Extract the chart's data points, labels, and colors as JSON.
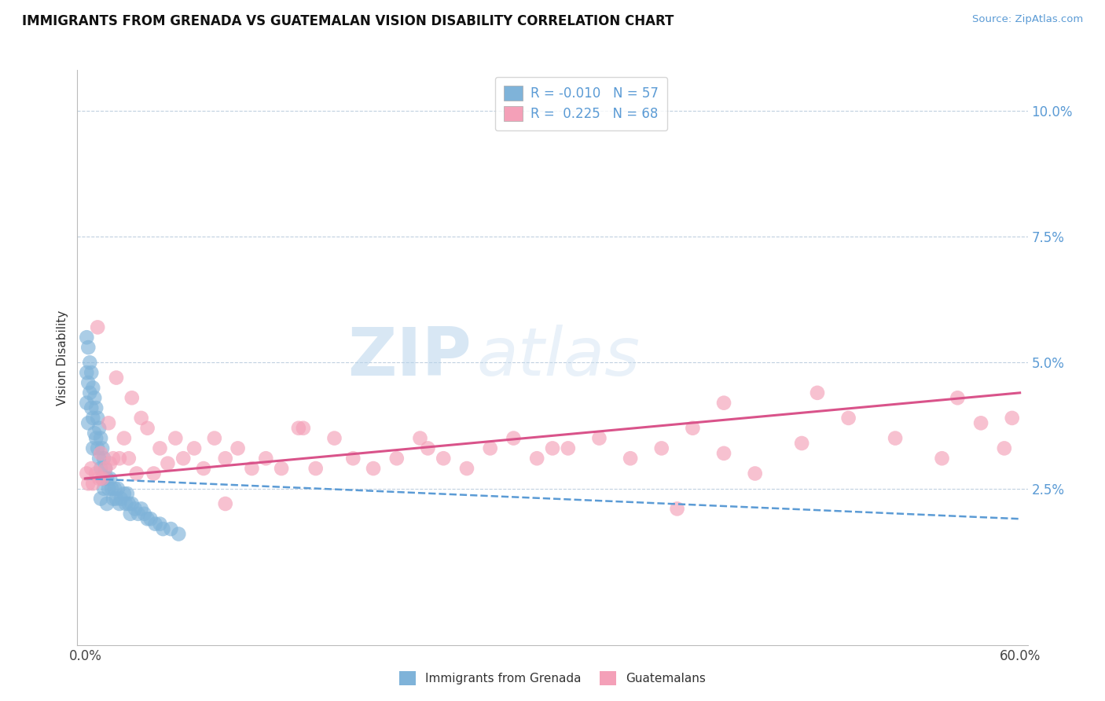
{
  "title": "IMMIGRANTS FROM GRENADA VS GUATEMALAN VISION DISABILITY CORRELATION CHART",
  "source": "Source: ZipAtlas.com",
  "ylabel": "Vision Disability",
  "watermark_zip": "ZIP",
  "watermark_atlas": "atlas",
  "xlim": [
    0.0,
    0.6
  ],
  "ylim": [
    -0.005,
    0.108
  ],
  "yticks": [
    0.0,
    0.025,
    0.05,
    0.075,
    0.1
  ],
  "ytick_labels": [
    "",
    "2.5%",
    "5.0%",
    "7.5%",
    "10.0%"
  ],
  "xticks": [
    0.0,
    0.1,
    0.2,
    0.3,
    0.4,
    0.5,
    0.6
  ],
  "xtick_labels": [
    "0.0%",
    "",
    "",
    "",
    "",
    "",
    "60.0%"
  ],
  "color_blue": "#7fb3d9",
  "color_pink": "#f4a0b8",
  "color_line_blue": "#5b9bd5",
  "color_line_pink": "#d9538a",
  "background_color": "#ffffff",
  "grid_color": "#c0d0e0",
  "blue_scatter_x": [
    0.001,
    0.001,
    0.001,
    0.002,
    0.002,
    0.002,
    0.003,
    0.003,
    0.004,
    0.004,
    0.005,
    0.005,
    0.005,
    0.006,
    0.006,
    0.007,
    0.007,
    0.008,
    0.008,
    0.009,
    0.009,
    0.01,
    0.01,
    0.01,
    0.011,
    0.011,
    0.012,
    0.012,
    0.013,
    0.014,
    0.014,
    0.015,
    0.016,
    0.017,
    0.018,
    0.019,
    0.02,
    0.021,
    0.022,
    0.023,
    0.025,
    0.026,
    0.027,
    0.028,
    0.029,
    0.03,
    0.032,
    0.034,
    0.036,
    0.038,
    0.04,
    0.042,
    0.045,
    0.048,
    0.05,
    0.055,
    0.06
  ],
  "blue_scatter_y": [
    0.055,
    0.048,
    0.042,
    0.053,
    0.046,
    0.038,
    0.05,
    0.044,
    0.048,
    0.041,
    0.045,
    0.039,
    0.033,
    0.043,
    0.036,
    0.041,
    0.035,
    0.039,
    0.033,
    0.037,
    0.031,
    0.035,
    0.029,
    0.023,
    0.033,
    0.027,
    0.031,
    0.025,
    0.029,
    0.027,
    0.022,
    0.025,
    0.027,
    0.025,
    0.023,
    0.025,
    0.023,
    0.025,
    0.022,
    0.023,
    0.024,
    0.022,
    0.024,
    0.022,
    0.02,
    0.022,
    0.021,
    0.02,
    0.021,
    0.02,
    0.019,
    0.019,
    0.018,
    0.018,
    0.017,
    0.017,
    0.016
  ],
  "pink_scatter_x": [
    0.001,
    0.002,
    0.004,
    0.005,
    0.007,
    0.008,
    0.009,
    0.01,
    0.011,
    0.013,
    0.015,
    0.016,
    0.018,
    0.02,
    0.022,
    0.025,
    0.028,
    0.03,
    0.033,
    0.036,
    0.04,
    0.044,
    0.048,
    0.053,
    0.058,
    0.063,
    0.07,
    0.076,
    0.083,
    0.09,
    0.098,
    0.107,
    0.116,
    0.126,
    0.137,
    0.148,
    0.16,
    0.172,
    0.185,
    0.2,
    0.215,
    0.23,
    0.245,
    0.26,
    0.275,
    0.29,
    0.31,
    0.33,
    0.35,
    0.37,
    0.39,
    0.41,
    0.43,
    0.46,
    0.49,
    0.52,
    0.55,
    0.575,
    0.59,
    0.595,
    0.3,
    0.14,
    0.09,
    0.22,
    0.41,
    0.47,
    0.38,
    0.56
  ],
  "pink_scatter_y": [
    0.028,
    0.026,
    0.029,
    0.026,
    0.028,
    0.057,
    0.027,
    0.032,
    0.027,
    0.029,
    0.038,
    0.03,
    0.031,
    0.047,
    0.031,
    0.035,
    0.031,
    0.043,
    0.028,
    0.039,
    0.037,
    0.028,
    0.033,
    0.03,
    0.035,
    0.031,
    0.033,
    0.029,
    0.035,
    0.031,
    0.033,
    0.029,
    0.031,
    0.029,
    0.037,
    0.029,
    0.035,
    0.031,
    0.029,
    0.031,
    0.035,
    0.031,
    0.029,
    0.033,
    0.035,
    0.031,
    0.033,
    0.035,
    0.031,
    0.033,
    0.037,
    0.032,
    0.028,
    0.034,
    0.039,
    0.035,
    0.031,
    0.038,
    0.033,
    0.039,
    0.033,
    0.037,
    0.022,
    0.033,
    0.042,
    0.044,
    0.021,
    0.043
  ],
  "blue_trend_x": [
    0.0,
    0.6
  ],
  "blue_trend_y_start": 0.027,
  "blue_trend_y_end": 0.019,
  "pink_trend_x": [
    0.0,
    0.6
  ],
  "pink_trend_y_start": 0.027,
  "pink_trend_y_end": 0.044
}
